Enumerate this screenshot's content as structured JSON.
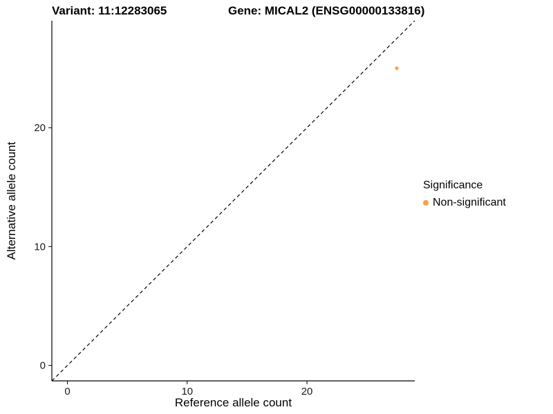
{
  "chart_data": {
    "type": "scatter",
    "title_left": "Variant: 11:12283065",
    "title_right": "Gene: MICAL2 (ENSG00000133816)",
    "xlabel": "Reference allele count",
    "ylabel": "Alternative allele count",
    "xlim": [
      -1.3,
      29
    ],
    "ylim": [
      -1.3,
      29
    ],
    "xticks": [
      0,
      10,
      20
    ],
    "yticks": [
      0,
      10,
      20
    ],
    "grid": false,
    "axis_color": "#000000",
    "identity_line": {
      "style": "dashed",
      "from": [
        -1.3,
        -1.3
      ],
      "to": [
        29,
        29
      ],
      "color": "#000000"
    },
    "series": [
      {
        "name": "Non-significant",
        "color": "#F9A242",
        "points": [
          {
            "x": 27.5,
            "y": 25
          }
        ]
      }
    ],
    "legend": {
      "title": "Significance",
      "position": "right",
      "entries": [
        {
          "label": "Non-significant",
          "color": "#F9A242"
        }
      ]
    }
  }
}
